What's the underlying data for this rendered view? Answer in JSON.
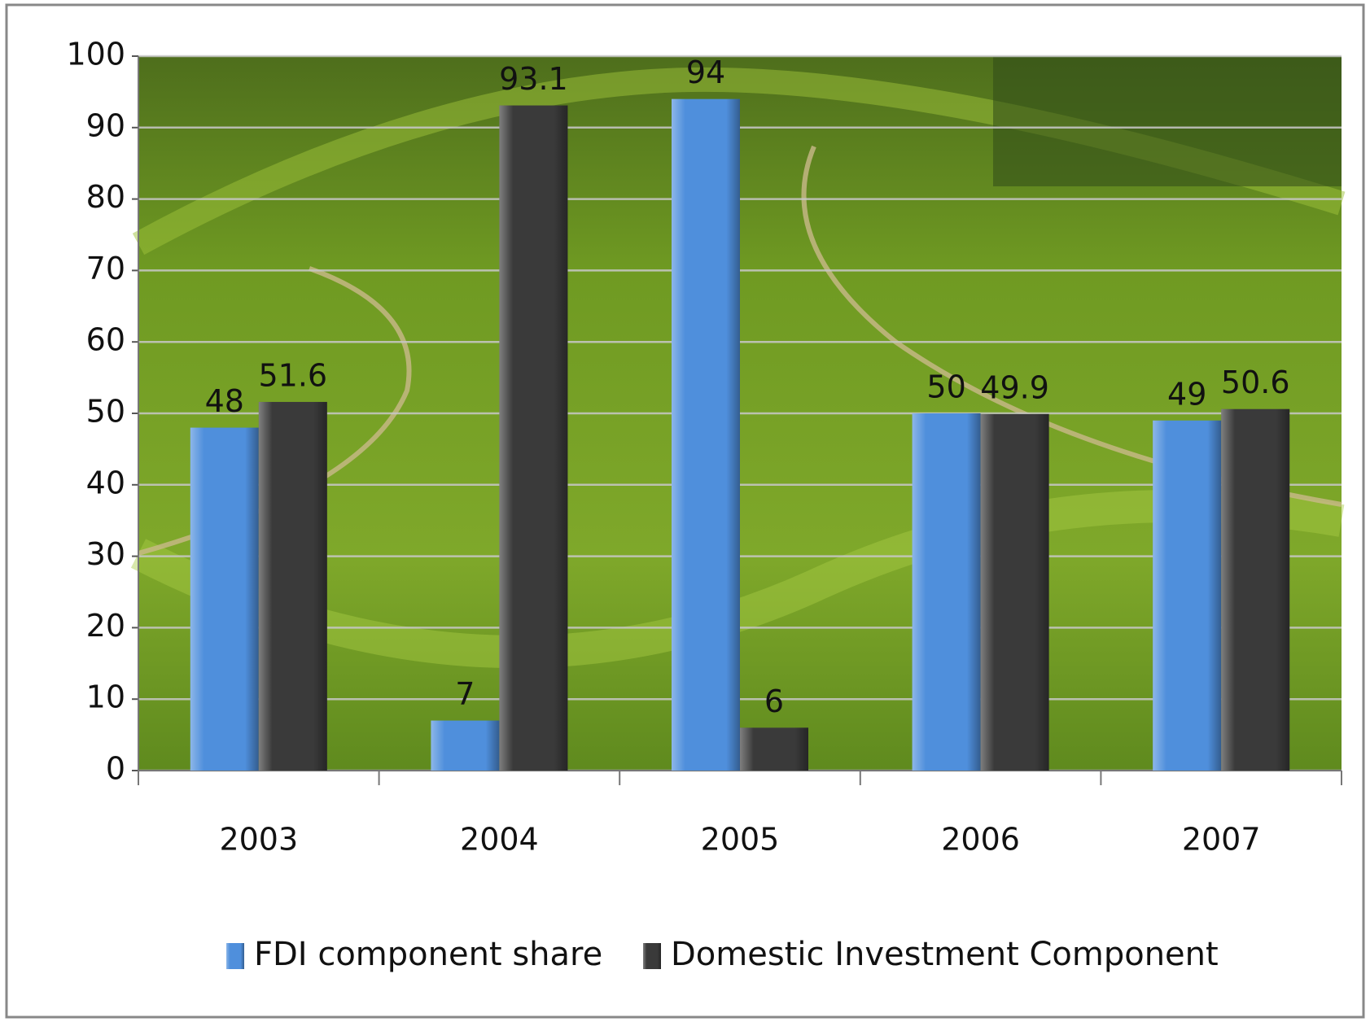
{
  "chart_data": {
    "type": "bar",
    "categories": [
      "2003",
      "2004",
      "2005",
      "2006",
      "2007"
    ],
    "series": [
      {
        "name": "FDI component share",
        "color": "#4f8fdc",
        "values": [
          48,
          7,
          94,
          50,
          49
        ]
      },
      {
        "name": "Domestic Investment Component",
        "color": "#3a3a3a",
        "values": [
          51.6,
          93.1,
          6,
          49.9,
          50.6
        ]
      }
    ],
    "ylim": [
      0,
      100
    ],
    "yticks": [
      0,
      10,
      20,
      30,
      40,
      50,
      60,
      70,
      80,
      90,
      100
    ],
    "grid": true,
    "legend": "bottom"
  }
}
